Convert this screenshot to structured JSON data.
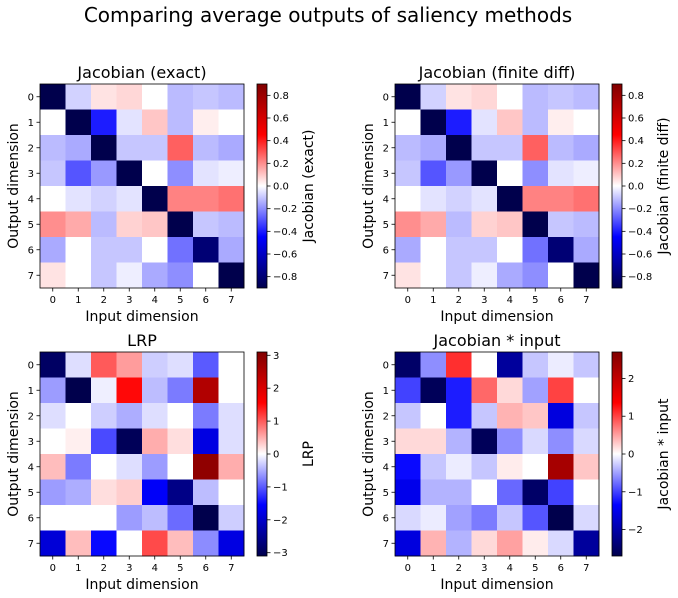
{
  "figure": {
    "title": "Comparing average outputs of saliency methods"
  },
  "chart_data": [
    {
      "type": "heatmap",
      "title": "Jacobian (exact)",
      "xlabel": "Input dimension",
      "ylabel": "Output dimension",
      "colorbar_label": "Jacobian (exact)",
      "colormap": "seismic",
      "x_categories": [
        "0",
        "1",
        "2",
        "3",
        "4",
        "5",
        "6",
        "7"
      ],
      "y_categories": [
        "0",
        "1",
        "2",
        "3",
        "4",
        "5",
        "6",
        "7"
      ],
      "clim": [
        -0.9,
        0.9
      ],
      "colorbar_ticks": [
        0.8,
        0.6,
        0.4,
        0.2,
        0.0,
        -0.2,
        -0.4,
        -0.6,
        -0.8
      ],
      "colorbar_tick_labels": [
        "0.8",
        "0.6",
        "0.4",
        "0.2",
        "0.0",
        "−0.2",
        "−0.4",
        "−0.6",
        "−0.8"
      ],
      "values": [
        [
          -0.9,
          -0.08,
          0.05,
          0.07,
          0.0,
          -0.12,
          -0.1,
          -0.12
        ],
        [
          0.0,
          -0.9,
          -0.4,
          -0.05,
          0.1,
          -0.12,
          0.03,
          0.0
        ],
        [
          -0.12,
          -0.15,
          -0.9,
          -0.1,
          -0.1,
          0.28,
          -0.12,
          -0.15
        ],
        [
          -0.1,
          -0.3,
          -0.18,
          -0.9,
          0.0,
          -0.2,
          -0.05,
          -0.03
        ],
        [
          0.0,
          -0.05,
          -0.08,
          -0.05,
          -0.9,
          0.22,
          0.22,
          0.25
        ],
        [
          0.2,
          0.15,
          -0.12,
          0.08,
          0.1,
          -0.9,
          -0.1,
          -0.12
        ],
        [
          -0.15,
          0.0,
          -0.1,
          -0.1,
          0.0,
          -0.25,
          -0.8,
          -0.15
        ],
        [
          0.05,
          0.0,
          -0.1,
          -0.03,
          -0.15,
          -0.2,
          0.0,
          -0.9
        ]
      ]
    },
    {
      "type": "heatmap",
      "title": "Jacobian (finite diff)",
      "xlabel": "Input dimension",
      "ylabel": "Output dimension",
      "colorbar_label": "Jacobian (finite diff)",
      "colormap": "seismic",
      "x_categories": [
        "0",
        "1",
        "2",
        "3",
        "4",
        "5",
        "6",
        "7"
      ],
      "y_categories": [
        "0",
        "1",
        "2",
        "3",
        "4",
        "5",
        "6",
        "7"
      ],
      "clim": [
        -0.9,
        0.9
      ],
      "colorbar_ticks": [
        0.8,
        0.6,
        0.4,
        0.2,
        0.0,
        -0.2,
        -0.4,
        -0.6,
        -0.8
      ],
      "colorbar_tick_labels": [
        "0.8",
        "0.6",
        "0.4",
        "0.2",
        "0.0",
        "−0.2",
        "−0.4",
        "−0.6",
        "−0.8"
      ],
      "values": [
        [
          -0.9,
          -0.08,
          0.05,
          0.07,
          0.0,
          -0.12,
          -0.1,
          -0.12
        ],
        [
          0.0,
          -0.9,
          -0.4,
          -0.05,
          0.1,
          -0.12,
          0.03,
          0.0
        ],
        [
          -0.12,
          -0.15,
          -0.9,
          -0.1,
          -0.1,
          0.28,
          -0.12,
          -0.15
        ],
        [
          -0.1,
          -0.3,
          -0.18,
          -0.9,
          0.0,
          -0.2,
          -0.05,
          -0.03
        ],
        [
          0.0,
          -0.05,
          -0.08,
          -0.05,
          -0.9,
          0.22,
          0.22,
          0.25
        ],
        [
          0.2,
          0.15,
          -0.12,
          0.08,
          0.1,
          -0.9,
          -0.1,
          -0.12
        ],
        [
          -0.15,
          0.0,
          -0.1,
          -0.1,
          0.0,
          -0.25,
          -0.8,
          -0.15
        ],
        [
          0.05,
          0.0,
          -0.1,
          -0.03,
          -0.15,
          -0.2,
          0.0,
          -0.9
        ]
      ]
    },
    {
      "type": "heatmap",
      "title": "LRP",
      "xlabel": "Input dimension",
      "ylabel": "Output dimension",
      "colorbar_label": "LRP",
      "colormap": "seismic",
      "x_categories": [
        "0",
        "1",
        "2",
        "3",
        "4",
        "5",
        "6",
        "7"
      ],
      "y_categories": [
        "0",
        "1",
        "2",
        "3",
        "4",
        "5",
        "6",
        "7"
      ],
      "clim": [
        -3.1,
        3.1
      ],
      "colorbar_ticks": [
        3,
        2,
        1,
        0,
        -1,
        -2,
        -3
      ],
      "colorbar_tick_labels": [
        "3",
        "2",
        "1",
        "0",
        "−1",
        "−2",
        "−3"
      ],
      "values": [
        [
          -2.9,
          -0.2,
          1.0,
          0.6,
          -0.3,
          -0.2,
          -1.0,
          0.0
        ],
        [
          -0.6,
          -3.1,
          -0.1,
          1.5,
          -0.4,
          -0.8,
          2.5,
          0.0
        ],
        [
          -0.2,
          0.0,
          -0.3,
          -0.5,
          -0.2,
          0.0,
          -0.8,
          -0.2
        ],
        [
          0.0,
          0.1,
          -1.1,
          -3.0,
          0.5,
          0.2,
          -1.8,
          -0.2
        ],
        [
          0.4,
          -0.8,
          0.0,
          -0.2,
          -0.6,
          0.0,
          2.9,
          0.5
        ],
        [
          -0.6,
          -0.5,
          0.2,
          0.3,
          -1.6,
          -2.6,
          -0.4,
          0.0
        ],
        [
          0.0,
          0.0,
          0.0,
          -0.6,
          -0.4,
          -0.9,
          -3.1,
          -0.3
        ],
        [
          -1.9,
          0.4,
          -1.5,
          0.0,
          1.1,
          0.4,
          -0.7,
          -1.8
        ]
      ]
    },
    {
      "type": "heatmap",
      "title": "Jacobian * input",
      "xlabel": "Input dimension",
      "ylabel": "Output dimension",
      "colorbar_label": "Jacobian * input",
      "colormap": "seismic",
      "x_categories": [
        "0",
        "1",
        "2",
        "3",
        "4",
        "5",
        "6",
        "7"
      ],
      "y_categories": [
        "0",
        "1",
        "2",
        "3",
        "4",
        "5",
        "6",
        "7"
      ],
      "clim": [
        -2.7,
        2.7
      ],
      "colorbar_ticks": [
        2,
        1,
        0,
        -1,
        -2
      ],
      "colorbar_tick_labels": [
        "2",
        "1",
        "0",
        "−1",
        "−2"
      ],
      "values": [
        [
          -2.5,
          -0.6,
          1.1,
          0.0,
          -2.1,
          -0.3,
          -0.1,
          -0.3
        ],
        [
          -1.0,
          -2.6,
          -1.2,
          0.8,
          0.2,
          -0.5,
          1.0,
          0.0
        ],
        [
          -0.3,
          0.0,
          -1.2,
          -0.3,
          0.4,
          0.3,
          -1.6,
          -0.3
        ],
        [
          0.2,
          0.2,
          -0.4,
          -2.6,
          -0.6,
          -0.2,
          -0.6,
          -0.2
        ],
        [
          -1.3,
          -0.3,
          -0.1,
          -0.3,
          0.1,
          0.0,
          2.3,
          0.3
        ],
        [
          -1.5,
          -0.4,
          -0.4,
          0.0,
          -0.8,
          -2.5,
          -1.0,
          0.0
        ],
        [
          -0.2,
          -0.1,
          -0.5,
          -0.7,
          -0.3,
          -0.9,
          -2.7,
          -0.2
        ],
        [
          -1.6,
          0.4,
          -0.4,
          0.2,
          0.5,
          0.1,
          -0.2,
          -2.1
        ]
      ]
    }
  ]
}
